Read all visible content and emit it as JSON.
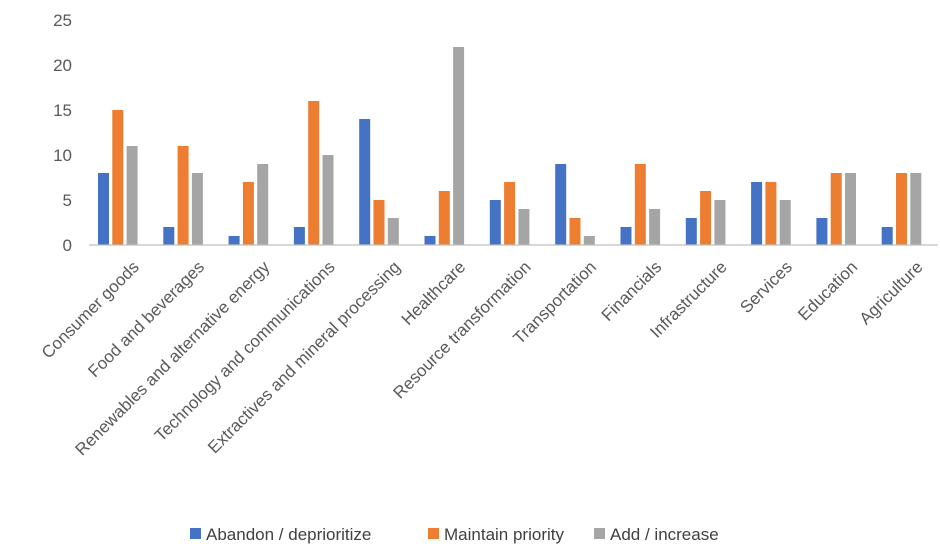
{
  "chart_data": {
    "type": "bar",
    "title": "",
    "xlabel": "",
    "ylabel": "",
    "ylim": [
      0,
      25
    ],
    "yticks": [
      0,
      5,
      10,
      15,
      20,
      25
    ],
    "grid": false,
    "legend_position": "bottom",
    "categories": [
      "Consumer goods",
      "Food and beverages",
      "Renewables and alternative energy",
      "Technology and communications",
      "Extractives and mineral processing",
      "Healthcare",
      "Resource transformation",
      "Transportation",
      "Financials",
      "Infrastructure",
      "Services",
      "Education",
      "Agriculture"
    ],
    "series": [
      {
        "name": "Abandon / deprioritize",
        "color": "#4472C4",
        "values": [
          8,
          2,
          1,
          2,
          14,
          1,
          5,
          9,
          2,
          3,
          7,
          3,
          2
        ]
      },
      {
        "name": "Maintain priority",
        "color": "#ED7D31",
        "values": [
          15,
          11,
          7,
          16,
          5,
          6,
          7,
          3,
          9,
          6,
          7,
          8,
          8
        ]
      },
      {
        "name": "Add / increase",
        "color": "#A5A5A5",
        "values": [
          11,
          8,
          9,
          10,
          3,
          22,
          4,
          1,
          4,
          5,
          5,
          8,
          8
        ]
      }
    ]
  }
}
